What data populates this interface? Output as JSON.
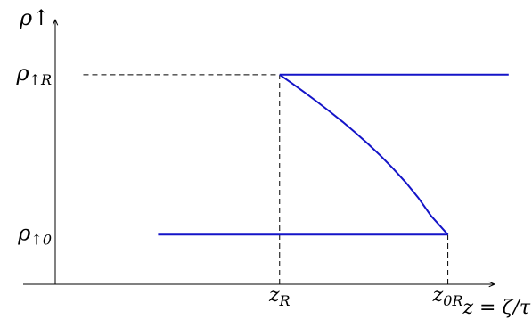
{
  "chart_data": {
    "type": "line",
    "y_axis_label": "ρ↑",
    "x_axis_label": "z = ζ/τ",
    "x_ticks": [
      {
        "key": "zR",
        "label": "z_R",
        "base": "z",
        "sub": "R",
        "value": 1.0
      },
      {
        "key": "z0R",
        "label": "z_0R",
        "base": "z",
        "sub": "0R",
        "value": 2.8
      }
    ],
    "y_ticks": [
      {
        "key": "rhoR",
        "label": "ρ↑R",
        "base": "ρ",
        "sub": "↑R",
        "value": 1.0
      },
      {
        "key": "rho0",
        "label": "ρ↑0",
        "base": "ρ",
        "sub": "↑0",
        "value": 0.0
      }
    ],
    "xlim": [
      -1.4,
      3.7
    ],
    "ylim": [
      -0.31,
      1.35
    ],
    "series": [
      {
        "points": [
          [
            1.0,
            1.0
          ],
          [
            3.45,
            1.0
          ]
        ]
      },
      {
        "points": [
          [
            -0.3,
            0.0
          ],
          [
            2.8,
            0.0
          ]
        ]
      },
      {
        "points": [
          [
            1.0,
            1.0
          ],
          [
            1.135,
            0.945
          ],
          [
            1.27,
            0.888
          ],
          [
            1.405,
            0.829
          ],
          [
            1.54,
            0.768
          ],
          [
            1.675,
            0.705
          ],
          [
            1.81,
            0.638
          ],
          [
            1.945,
            0.568
          ],
          [
            2.08,
            0.493
          ],
          [
            2.215,
            0.413
          ],
          [
            2.35,
            0.326
          ],
          [
            2.485,
            0.23
          ],
          [
            2.62,
            0.118
          ],
          [
            2.8,
            0.0
          ]
        ]
      }
    ],
    "guides": [
      {
        "from": [
          1.0,
          -0.31
        ],
        "to": [
          1.0,
          1.0
        ]
      },
      {
        "from": [
          2.8,
          -0.31
        ],
        "to": [
          2.8,
          0.0
        ]
      },
      {
        "from": [
          -1.1,
          1.0
        ],
        "to": [
          1.0,
          1.0
        ]
      }
    ],
    "grid": false,
    "legend": "none"
  }
}
